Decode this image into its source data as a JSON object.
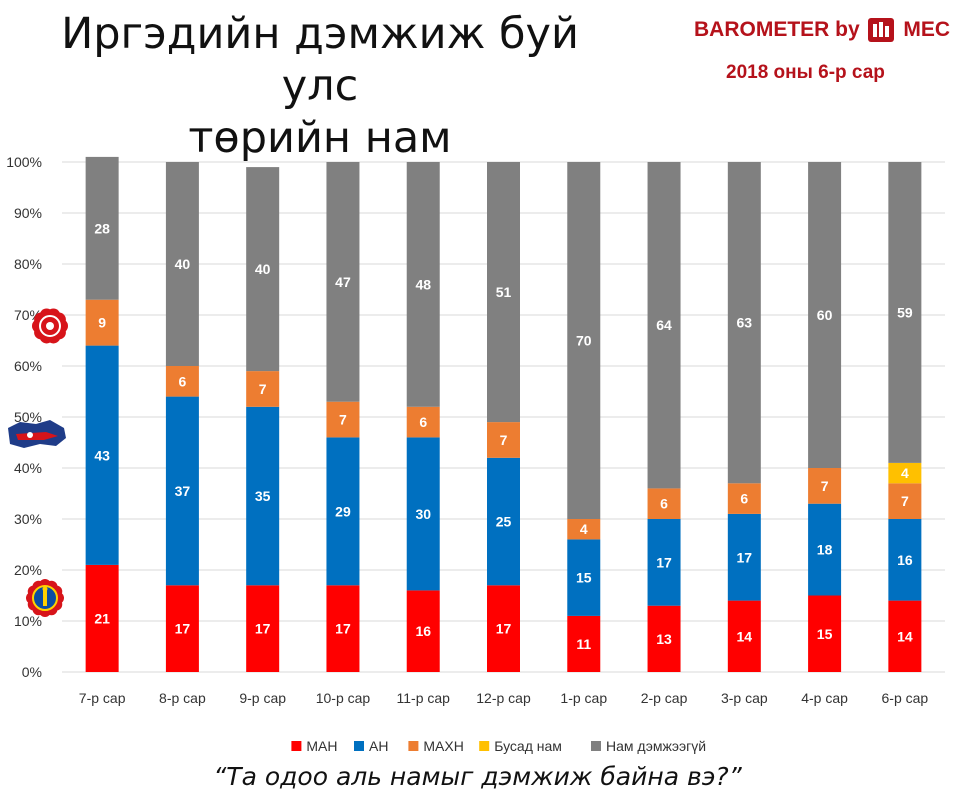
{
  "header": {
    "title_line1": "Иргэдийн дэмжиж буй улс",
    "title_line2": "төрийн нам",
    "brand_text": "BAROMETER by",
    "brand_suffix": "MEC",
    "period": "2018 оны 6-р сар"
  },
  "footer": {
    "question": "“Та одоо аль намыг дэмжиж байна вэ?”"
  },
  "party_icons": [
    "mpp-emblem-icon",
    "dp-emblem-icon",
    "mpp-soyombo-icon"
  ],
  "chart_data": {
    "type": "bar",
    "stacked": true,
    "categories": [
      "7-р сар",
      "8-р сар",
      "9-р сар",
      "10-р сар",
      "11-р сар",
      "12-р сар",
      "1-р сар",
      "2-р сар",
      "3-р сар",
      "4-р сар",
      "6-р сар"
    ],
    "series": [
      {
        "name": "МАН",
        "color": "#ff0000",
        "values": [
          21,
          17,
          17,
          17,
          16,
          17,
          11,
          13,
          14,
          15,
          14
        ]
      },
      {
        "name": "АН",
        "color": "#0070c0",
        "values": [
          43,
          37,
          35,
          29,
          30,
          25,
          15,
          17,
          17,
          18,
          16
        ]
      },
      {
        "name": "МАХН",
        "color": "#ed7d31",
        "values": [
          9,
          6,
          7,
          7,
          6,
          7,
          4,
          6,
          6,
          7,
          7
        ]
      },
      {
        "name": "Бусад нам",
        "color": "#ffc000",
        "values": [
          0,
          0,
          0,
          0,
          0,
          0,
          0,
          0,
          0,
          0,
          4
        ]
      },
      {
        "name": "Нам дэмжээгүй",
        "color": "#808080",
        "values": [
          28,
          40,
          40,
          47,
          48,
          51,
          70,
          64,
          63,
          60,
          59
        ]
      }
    ],
    "yticks": [
      "0%",
      "10%",
      "20%",
      "30%",
      "40%",
      "50%",
      "60%",
      "70%",
      "80%",
      "90%",
      "100%"
    ],
    "ylim": [
      0,
      100
    ],
    "grid": true,
    "legend": "bottom"
  }
}
